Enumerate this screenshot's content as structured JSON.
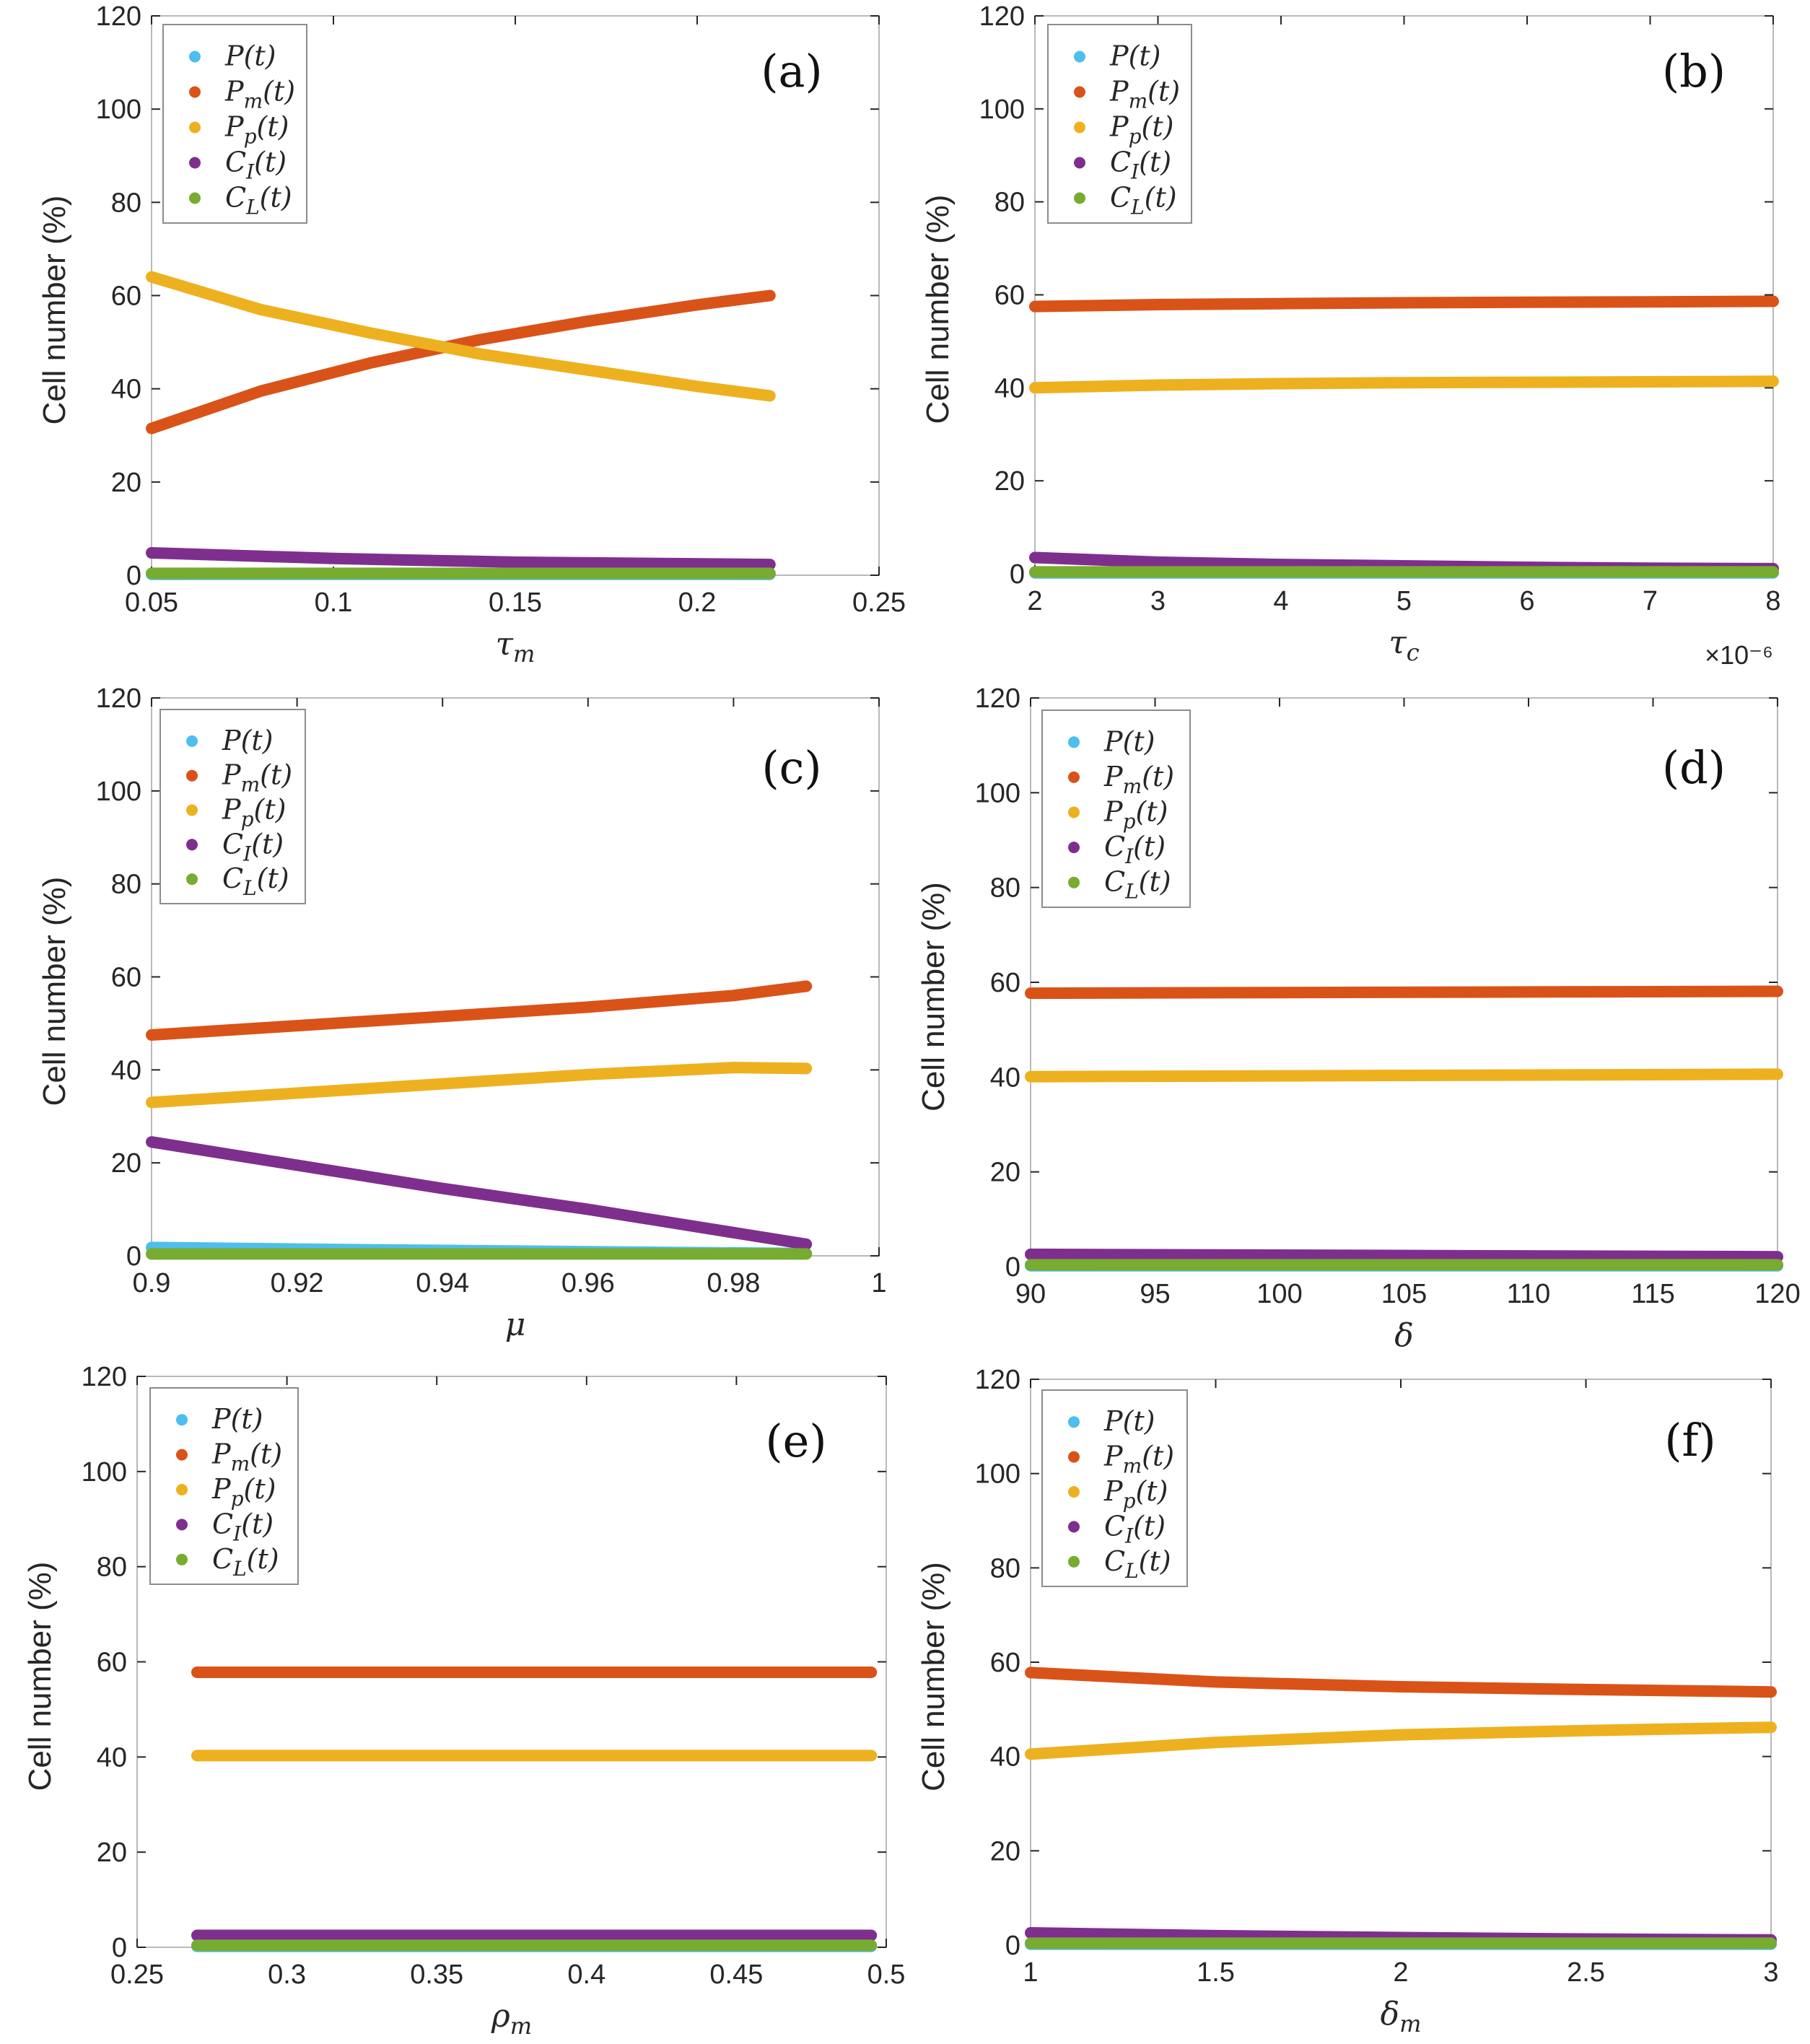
{
  "colors": {
    "P": "#4DBEEE",
    "Pm": "#D95319",
    "Pp": "#EDB120",
    "CI": "#7E2F8E",
    "CL": "#77AC30",
    "axis": "#262626",
    "frame": "#b9b9b9"
  },
  "legend_labels": [
    "P(t)",
    "Pm(t)",
    "Pp(t)",
    "CI(t)",
    "CL(t)"
  ],
  "chart_data": [
    {
      "type": "line",
      "panel": "(a)",
      "xlabel": "τm",
      "ylabel": "Cell number (%)",
      "xlim": [
        0.05,
        0.25
      ],
      "ylim": [
        0,
        120
      ],
      "xticks": [
        "0.05",
        "0.1",
        "0.15",
        "0.2",
        "0.25"
      ],
      "yticks": [
        "0",
        "20",
        "40",
        "60",
        "80",
        "100",
        "120"
      ],
      "series": [
        {
          "name": "P(t)",
          "x": [
            0.05,
            0.22
          ],
          "y": [
            0.2,
            0.2
          ]
        },
        {
          "name": "Pm(t)",
          "x": [
            0.05,
            0.08,
            0.11,
            0.14,
            0.17,
            0.2,
            0.22
          ],
          "y": [
            31.5,
            39.5,
            45.5,
            50.5,
            54.5,
            58,
            60
          ]
        },
        {
          "name": "Pp(t)",
          "x": [
            0.05,
            0.08,
            0.11,
            0.14,
            0.17,
            0.2,
            0.22
          ],
          "y": [
            64,
            57,
            52,
            47.5,
            44,
            40.5,
            38.5
          ]
        },
        {
          "name": "CI(t)",
          "x": [
            0.05,
            0.1,
            0.15,
            0.22
          ],
          "y": [
            4.8,
            3.6,
            2.8,
            2.3
          ]
        },
        {
          "name": "CL(t)",
          "x": [
            0.05,
            0.22
          ],
          "y": [
            0.4,
            0.4
          ]
        }
      ]
    },
    {
      "type": "line",
      "panel": "(b)",
      "xlabel": "τc",
      "ylabel": "Cell number (%)",
      "xlim": [
        2,
        8
      ],
      "ylim": [
        0,
        120
      ],
      "xticks": [
        "2",
        "3",
        "4",
        "5",
        "6",
        "7",
        "8"
      ],
      "yticks": [
        "0",
        "20",
        "40",
        "60",
        "80",
        "100",
        "120"
      ],
      "exponent": "×10⁻⁶",
      "series": [
        {
          "name": "P(t)",
          "x": [
            2,
            8
          ],
          "y": [
            0.2,
            0.2
          ]
        },
        {
          "name": "Pm(t)",
          "x": [
            2,
            3,
            4,
            5,
            6,
            7,
            8
          ],
          "y": [
            57.5,
            57.9,
            58.1,
            58.3,
            58.4,
            58.5,
            58.6
          ]
        },
        {
          "name": "Pp(t)",
          "x": [
            2,
            3,
            4,
            5,
            6,
            7,
            8
          ],
          "y": [
            40,
            40.6,
            40.9,
            41.1,
            41.2,
            41.3,
            41.4
          ]
        },
        {
          "name": "CI(t)",
          "x": [
            2,
            3,
            4,
            5,
            6,
            7,
            8
          ],
          "y": [
            3.5,
            2.5,
            2.0,
            1.7,
            1.4,
            1.2,
            1.1
          ]
        },
        {
          "name": "CL(t)",
          "x": [
            2,
            8
          ],
          "y": [
            0.4,
            0.4
          ]
        }
      ]
    },
    {
      "type": "line",
      "panel": "(c)",
      "xlabel": "μ",
      "ylabel": "Cell number (%)",
      "xlim": [
        0.9,
        1
      ],
      "ylim": [
        0,
        120
      ],
      "xticks": [
        "0.9",
        "0.92",
        "0.94",
        "0.96",
        "0.98",
        "1"
      ],
      "yticks": [
        "0",
        "20",
        "40",
        "60",
        "80",
        "100",
        "120"
      ],
      "series": [
        {
          "name": "P(t)",
          "x": [
            0.9,
            0.93,
            0.96,
            0.99
          ],
          "y": [
            1.8,
            1.3,
            0.9,
            0.5
          ]
        },
        {
          "name": "Pm(t)",
          "x": [
            0.9,
            0.92,
            0.94,
            0.96,
            0.98,
            0.99
          ],
          "y": [
            47.5,
            49.5,
            51.5,
            53.5,
            56,
            58
          ]
        },
        {
          "name": "Pp(t)",
          "x": [
            0.9,
            0.92,
            0.94,
            0.96,
            0.98,
            0.99
          ],
          "y": [
            33,
            35,
            37,
            39,
            40.5,
            40.3
          ]
        },
        {
          "name": "CI(t)",
          "x": [
            0.9,
            0.92,
            0.94,
            0.96,
            0.98,
            0.99
          ],
          "y": [
            24.5,
            19.5,
            14.5,
            10,
            5,
            2.5
          ]
        },
        {
          "name": "CL(t)",
          "x": [
            0.9,
            0.99
          ],
          "y": [
            0.4,
            0.4
          ]
        }
      ]
    },
    {
      "type": "line",
      "panel": "(d)",
      "xlabel": "δ",
      "ylabel": "Cell number (%)",
      "xlim": [
        90,
        120
      ],
      "ylim": [
        0,
        120
      ],
      "xticks": [
        "90",
        "95",
        "100",
        "105",
        "110",
        "115",
        "120"
      ],
      "yticks": [
        "0",
        "20",
        "40",
        "60",
        "80",
        "100",
        "120"
      ],
      "series": [
        {
          "name": "P(t)",
          "x": [
            90,
            120
          ],
          "y": [
            0.2,
            0.2
          ]
        },
        {
          "name": "Pm(t)",
          "x": [
            90,
            120
          ],
          "y": [
            57.7,
            58.1
          ]
        },
        {
          "name": "Pp(t)",
          "x": [
            90,
            120
          ],
          "y": [
            40.1,
            40.6
          ]
        },
        {
          "name": "CI(t)",
          "x": [
            90,
            120
          ],
          "y": [
            2.6,
            2.1
          ]
        },
        {
          "name": "CL(t)",
          "x": [
            90,
            120
          ],
          "y": [
            0.4,
            0.4
          ]
        }
      ]
    },
    {
      "type": "line",
      "panel": "(e)",
      "xlabel": "ρm",
      "ylabel": "Cell number (%)",
      "xlim": [
        0.25,
        0.5
      ],
      "ylim": [
        0,
        120
      ],
      "xticks": [
        "0.25",
        "0.3",
        "0.35",
        "0.4",
        "0.45",
        "0.5"
      ],
      "yticks": [
        "0",
        "20",
        "40",
        "60",
        "80",
        "100",
        "120"
      ],
      "series": [
        {
          "name": "P(t)",
          "x": [
            0.27,
            0.495
          ],
          "y": [
            0.2,
            0.2
          ]
        },
        {
          "name": "Pm(t)",
          "x": [
            0.27,
            0.495
          ],
          "y": [
            57.8,
            57.8
          ]
        },
        {
          "name": "Pp(t)",
          "x": [
            0.27,
            0.495
          ],
          "y": [
            40.3,
            40.3
          ]
        },
        {
          "name": "CI(t)",
          "x": [
            0.27,
            0.495
          ],
          "y": [
            2.5,
            2.5
          ]
        },
        {
          "name": "CL(t)",
          "x": [
            0.27,
            0.495
          ],
          "y": [
            0.4,
            0.4
          ]
        }
      ]
    },
    {
      "type": "line",
      "panel": "(f)",
      "xlabel": "δm",
      "ylabel": "Cell number (%)",
      "xlim": [
        1,
        3
      ],
      "ylim": [
        0,
        120
      ],
      "xticks": [
        "1",
        "1.5",
        "2",
        "2.5",
        "3"
      ],
      "yticks": [
        "0",
        "20",
        "40",
        "60",
        "80",
        "100",
        "120"
      ],
      "series": [
        {
          "name": "P(t)",
          "x": [
            1,
            3
          ],
          "y": [
            0.2,
            0.2
          ]
        },
        {
          "name": "Pm(t)",
          "x": [
            1,
            1.5,
            2,
            2.5,
            3
          ],
          "y": [
            57.8,
            55.8,
            54.8,
            54.2,
            53.7
          ]
        },
        {
          "name": "Pp(t)",
          "x": [
            1,
            1.5,
            2,
            2.5,
            3
          ],
          "y": [
            40.5,
            43,
            44.6,
            45.5,
            46.2
          ]
        },
        {
          "name": "CI(t)",
          "x": [
            1,
            1.5,
            2,
            2.5,
            3
          ],
          "y": [
            2.6,
            2.0,
            1.6,
            1.3,
            1.1
          ]
        },
        {
          "name": "CL(t)",
          "x": [
            1,
            3
          ],
          "y": [
            0.4,
            0.4
          ]
        }
      ]
    }
  ]
}
